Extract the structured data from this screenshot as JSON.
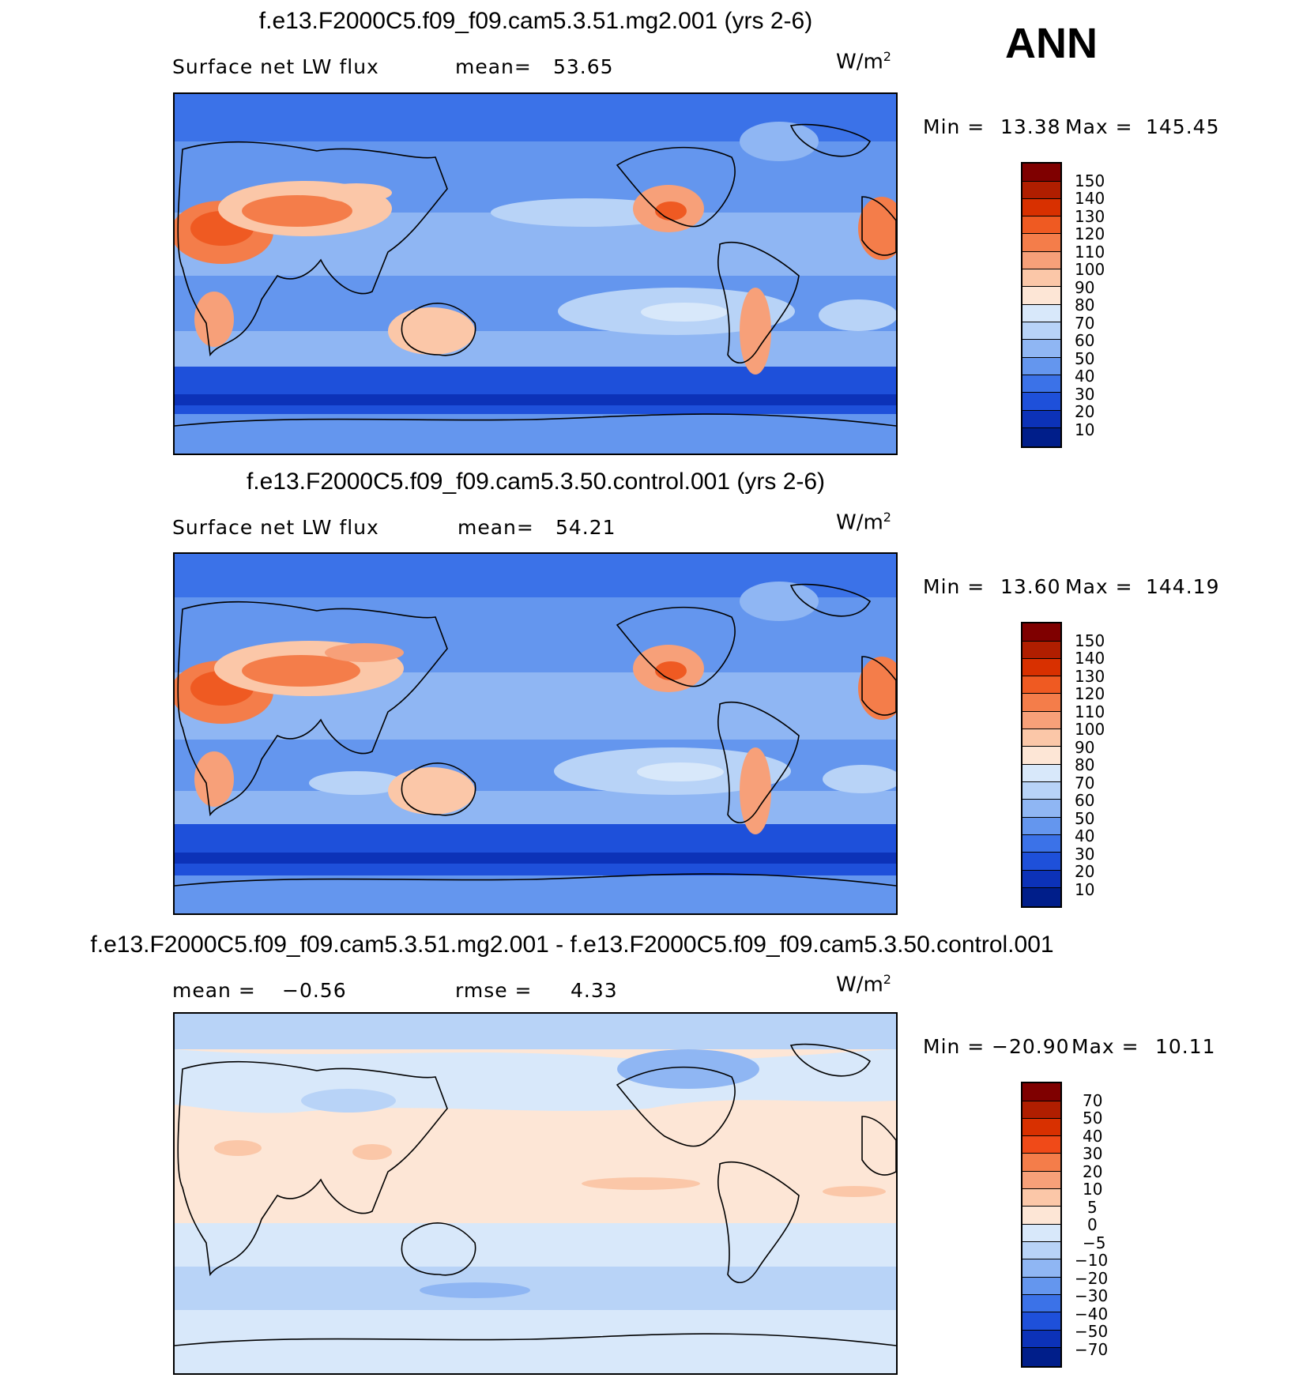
{
  "season": "ANN",
  "panels": [
    {
      "title": "f.e13.F2000C5.f09_f09.cam5.3.51.mg2.001 (yrs 2-6)",
      "left_label": "Surface net LW flux",
      "stat1_label": "mean=",
      "stat1_value": "53.65",
      "units": "W/m",
      "units_exp": "2",
      "min_label": "Min =",
      "min_value": "13.38",
      "max_label": "Max =",
      "max_value": "145.45",
      "colorbar_labels": [
        "150",
        "140",
        "130",
        "120",
        "110",
        "100",
        "90",
        "80",
        "70",
        "60",
        "50",
        "40",
        "30",
        "20",
        "10"
      ],
      "colorbar_colors": [
        "#7f0000",
        "#b01e00",
        "#d83000",
        "#ef5a22",
        "#f47d4a",
        "#f7a079",
        "#fbc7a8",
        "#fde6d6",
        "#d8e8fa",
        "#b8d3f7",
        "#8fb6f3",
        "#6496ee",
        "#3b72e8",
        "#1e50da",
        "#0c32b8",
        "#001e8a"
      ]
    },
    {
      "title": "f.e13.F2000C5.f09_f09.cam5.3.50.control.001 (yrs 2-6)",
      "left_label": "Surface net LW flux",
      "stat1_label": "mean=",
      "stat1_value": "54.21",
      "units": "W/m",
      "units_exp": "2",
      "min_label": "Min =",
      "min_value": "13.60",
      "max_label": "Max =",
      "max_value": "144.19",
      "colorbar_labels": [
        "150",
        "140",
        "130",
        "120",
        "110",
        "100",
        "90",
        "80",
        "70",
        "60",
        "50",
        "40",
        "30",
        "20",
        "10"
      ],
      "colorbar_colors": [
        "#7f0000",
        "#b01e00",
        "#d83000",
        "#ef5a22",
        "#f47d4a",
        "#f7a079",
        "#fbc7a8",
        "#fde6d6",
        "#d8e8fa",
        "#b8d3f7",
        "#8fb6f3",
        "#6496ee",
        "#3b72e8",
        "#1e50da",
        "#0c32b8",
        "#001e8a"
      ]
    },
    {
      "title": "f.e13.F2000C5.f09_f09.cam5.3.51.mg2.001 - f.e13.F2000C5.f09_f09.cam5.3.50.control.001",
      "stat1_label": "mean =",
      "stat1_value": "−0.56",
      "stat2_label": "rmse =",
      "stat2_value": "4.33",
      "units": "W/m",
      "units_exp": "2",
      "min_label": "Min =",
      "min_value": "−20.90",
      "max_label": "Max =",
      "max_value": "10.11",
      "colorbar_labels": [
        "70",
        "50",
        "40",
        "30",
        "20",
        "10",
        "5",
        "0",
        "−5",
        "−10",
        "−20",
        "−30",
        "−40",
        "−50",
        "−70"
      ],
      "colorbar_colors": [
        "#7f0000",
        "#b01e00",
        "#d83000",
        "#f04a18",
        "#f47d4a",
        "#f7a079",
        "#fbc7a8",
        "#fde6d6",
        "#d8e8fa",
        "#b8d3f7",
        "#8fb6f3",
        "#6496ee",
        "#3b72e8",
        "#1e50da",
        "#0c32b8",
        "#001e8a"
      ]
    }
  ]
}
